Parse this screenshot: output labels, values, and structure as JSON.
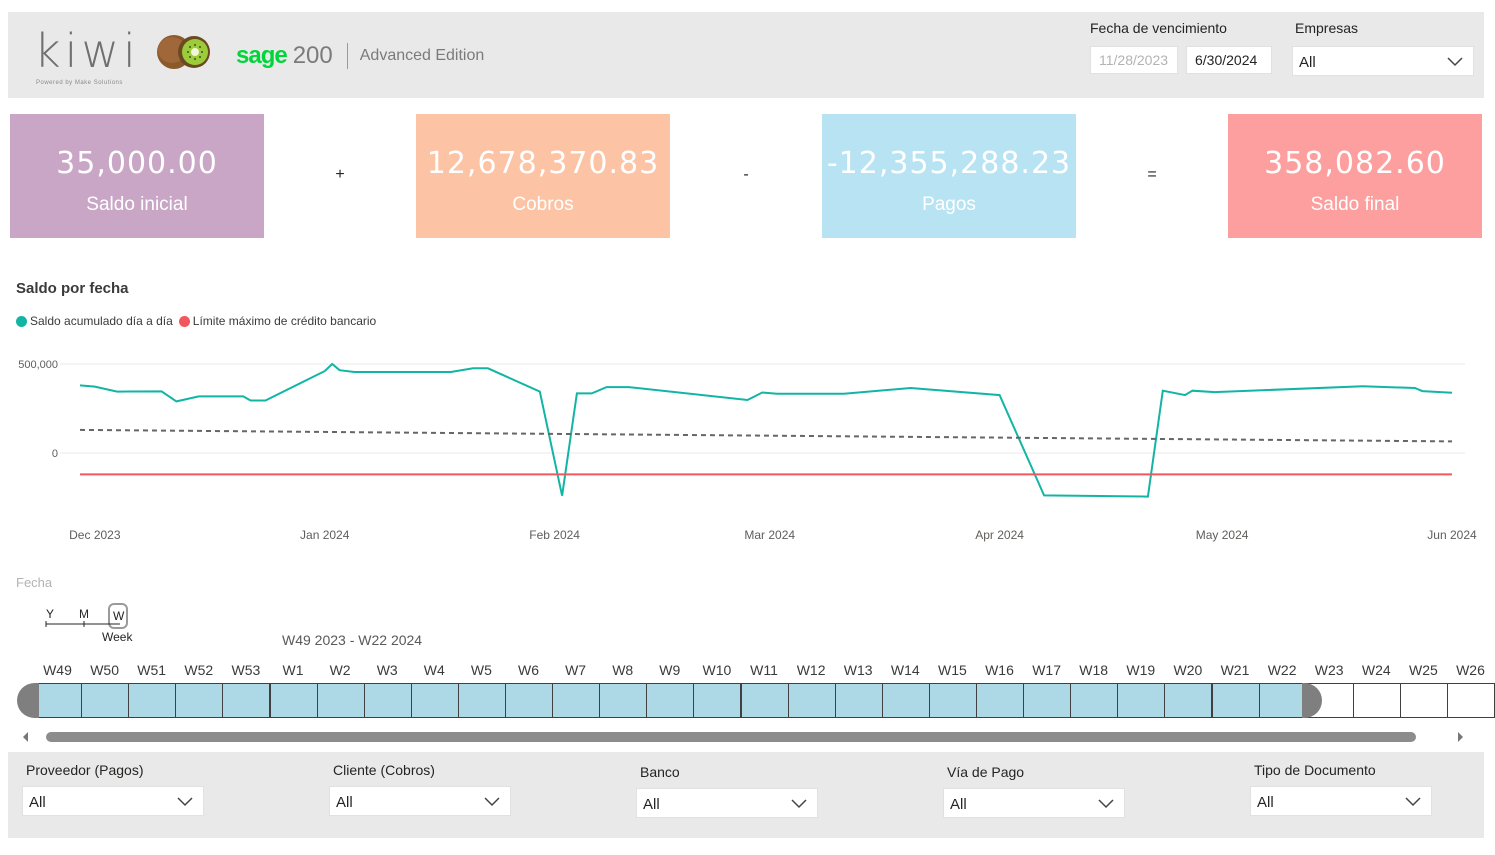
{
  "header": {
    "logo_text": "kiwi",
    "logo_subtext": "Powered by Make Solutions",
    "sage_word": "sage",
    "sage_version": "200",
    "sage_edition": "Advanced Edition",
    "date_label": "Fecha de vencimiento",
    "date_start": "11/28/2023",
    "date_end": "6/30/2024",
    "empresas_label": "Empresas",
    "empresas_value": "All"
  },
  "kpis": [
    {
      "value": "35,000.00",
      "label": "Saldo inicial",
      "color": "#c9a6c5"
    },
    {
      "value": "12,678,370.83",
      "label": "Cobros",
      "color": "#fcc3a5"
    },
    {
      "value": "-12,355,288.23",
      "label": "Pagos",
      "color": "#b8e3f2"
    },
    {
      "value": "358,082.60",
      "label": "Saldo final",
      "color": "#fe9f9f"
    }
  ],
  "operators": [
    "+",
    "-",
    "="
  ],
  "chart": {
    "title": "Saldo por fecha",
    "legend": [
      {
        "label": "Saldo acumulado día a día",
        "color": "#12b5a4"
      },
      {
        "label": "Límite máximo de crédito bancario",
        "color": "#f0585d"
      }
    ]
  },
  "chart_data": {
    "type": "line",
    "title": "Saldo por fecha",
    "xlabel": "",
    "ylabel": "",
    "x_ticks": [
      "Dec 2023",
      "Jan 2024",
      "Feb 2024",
      "Mar 2024",
      "Apr 2024",
      "May 2024",
      "Jun 2024"
    ],
    "y_ticks": [
      {
        "value": 0,
        "label": "0"
      },
      {
        "value": 500000,
        "label": "500,000"
      }
    ],
    "xlim": [
      "2023-11-29",
      "2024-06-01"
    ],
    "ylim": [
      -325000,
      600000
    ],
    "grid": true,
    "legend_position": "top-left",
    "series": [
      {
        "name": "Saldo acumulado día a día",
        "color": "#12b5a4",
        "style": "solid",
        "points": [
          [
            "2023-11-29",
            380000
          ],
          [
            "2023-12-01",
            373000
          ],
          [
            "2023-12-04",
            345000
          ],
          [
            "2023-12-10",
            346000
          ],
          [
            "2023-12-12",
            290000
          ],
          [
            "2023-12-15",
            318000
          ],
          [
            "2023-12-21",
            318000
          ],
          [
            "2023-12-22",
            295000
          ],
          [
            "2023-12-24",
            295000
          ],
          [
            "2024-01-01",
            460000
          ],
          [
            "2024-01-02",
            500000
          ],
          [
            "2024-01-03",
            465000
          ],
          [
            "2024-01-05",
            455000
          ],
          [
            "2024-01-18",
            455000
          ],
          [
            "2024-01-21",
            476000
          ],
          [
            "2024-01-23",
            476000
          ],
          [
            "2024-01-30",
            345000
          ],
          [
            "2024-02-02",
            -240000
          ],
          [
            "2024-02-04",
            335000
          ],
          [
            "2024-02-06",
            335000
          ],
          [
            "2024-02-08",
            370000
          ],
          [
            "2024-02-11",
            370000
          ],
          [
            "2024-02-27",
            298000
          ],
          [
            "2024-02-29",
            340000
          ],
          [
            "2024-03-02",
            333000
          ],
          [
            "2024-03-11",
            333000
          ],
          [
            "2024-03-20",
            365000
          ],
          [
            "2024-04-01",
            325000
          ],
          [
            "2024-04-07",
            -238000
          ],
          [
            "2024-04-21",
            -245000
          ],
          [
            "2024-04-23",
            350000
          ],
          [
            "2024-04-26",
            325000
          ],
          [
            "2024-04-27",
            350000
          ],
          [
            "2024-04-30",
            342000
          ],
          [
            "2024-05-20",
            375000
          ],
          [
            "2024-05-27",
            365000
          ],
          [
            "2024-05-28",
            348000
          ],
          [
            "2024-06-01",
            338000
          ]
        ]
      },
      {
        "name": "",
        "color": "#666666",
        "style": "dashed",
        "points": [
          [
            "2023-11-29",
            130000
          ],
          [
            "2024-06-01",
            65000
          ]
        ]
      },
      {
        "name": "Límite máximo de crédito bancario",
        "color": "#f0585d",
        "style": "solid",
        "points": [
          [
            "2023-11-29",
            -120000
          ],
          [
            "2024-06-01",
            -120000
          ]
        ]
      }
    ]
  },
  "slicer": {
    "title": "Fecha",
    "granularity": [
      "Y",
      "M",
      "W"
    ],
    "granularity_selected": "Week",
    "range_text": "W49 2023 - W22 2024",
    "weeks": [
      "W49",
      "W50",
      "W51",
      "W52",
      "W53",
      "W1",
      "W2",
      "W3",
      "W4",
      "W5",
      "W6",
      "W7",
      "W8",
      "W9",
      "W10",
      "W11",
      "W12",
      "W13",
      "W14",
      "W15",
      "W16",
      "W17",
      "W18",
      "W19",
      "W20",
      "W21",
      "W22",
      "W23",
      "W24",
      "W25",
      "W26"
    ],
    "selected_count": 27
  },
  "filters": [
    {
      "label": "Proveedor (Pagos)",
      "value": "All"
    },
    {
      "label": "Cliente (Cobros)",
      "value": "All"
    },
    {
      "label": "Banco",
      "value": "All"
    },
    {
      "label": "Vía de Pago",
      "value": "All"
    },
    {
      "label": "Tipo de Documento",
      "value": "All"
    }
  ]
}
